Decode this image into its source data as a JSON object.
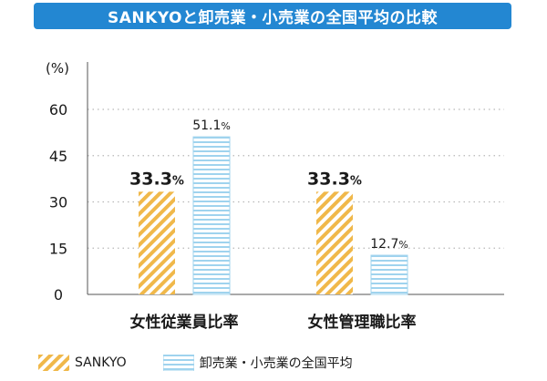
{
  "chart_data": {
    "type": "bar",
    "title": "SANKYOと卸売業・小売業の全国平均の比較",
    "ylabel": "(%)",
    "ylim": [
      0,
      60
    ],
    "yticks": [
      "0",
      "15",
      "30",
      "45",
      "60"
    ],
    "grid": true,
    "legend_position": "bottom-left",
    "categories": [
      "女性従業員比率",
      "女性管理職比率"
    ],
    "series": [
      {
        "name": "SANKYO",
        "values": [
          33.3,
          33.3
        ],
        "labels": [
          "33.3",
          "33.3"
        ],
        "color": "#f0b84a",
        "pattern": "diagonal-hatch"
      },
      {
        "name": "卸売業・小売業の全国平均",
        "values": [
          51.1,
          12.7
        ],
        "labels": [
          "51.1",
          "12.7"
        ],
        "color": "#9fd3ee",
        "pattern": "horizontal-lines"
      }
    ],
    "unit_suffix": "%"
  },
  "colors": {
    "title_bg": "#2387d2",
    "axis": "#555555",
    "grid": "#b8b8b8"
  }
}
